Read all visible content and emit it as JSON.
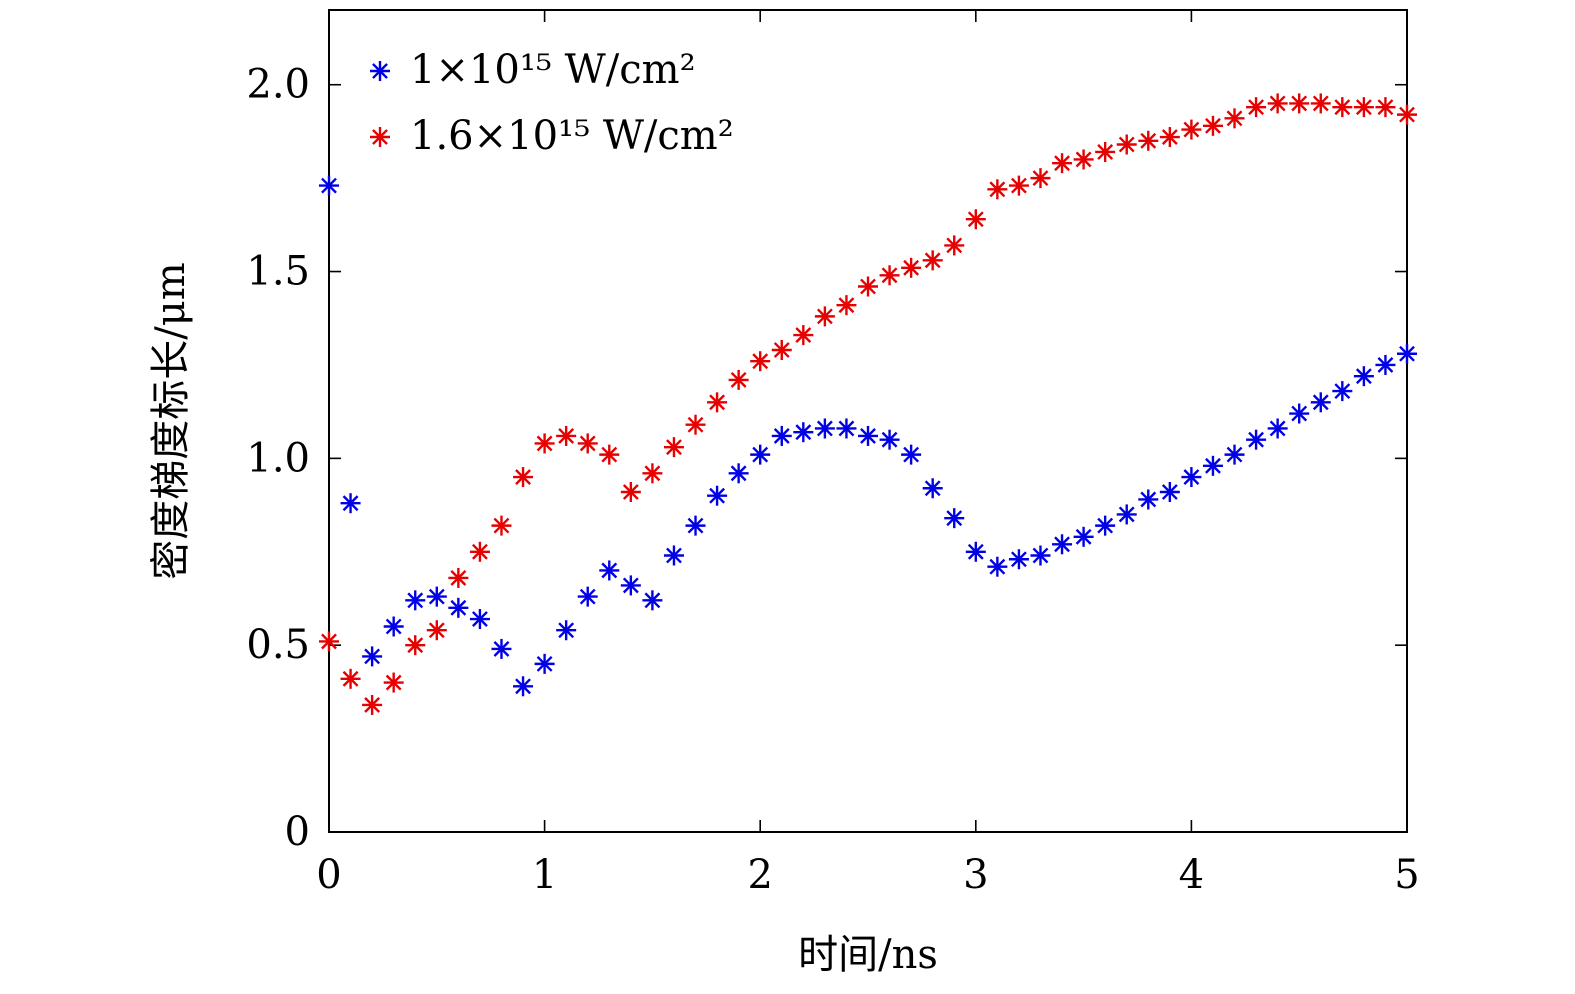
{
  "chart_data": {
    "type": "scatter",
    "title": "",
    "xlabel": "时间/ns",
    "ylabel": "密度梯度标长/μm",
    "xlim": [
      0,
      5
    ],
    "ylim": [
      0,
      2.2
    ],
    "xticks": [
      0,
      1,
      2,
      3,
      4,
      5
    ],
    "xtick_labels": [
      "0",
      "1",
      "2",
      "3",
      "4",
      "5"
    ],
    "yticks": [
      0,
      0.5,
      1.0,
      1.5,
      2.0
    ],
    "ytick_labels": [
      "0",
      "0.5",
      "1.0",
      "1.5",
      "2.0"
    ],
    "grid": false,
    "legend_position": "top-left",
    "marker": "asterisk",
    "series": [
      {
        "name": "1×10¹⁵ W/cm²",
        "color": "#0000e6",
        "points": [
          [
            0.0,
            1.73
          ],
          [
            0.1,
            0.88
          ],
          [
            0.2,
            0.47
          ],
          [
            0.3,
            0.55
          ],
          [
            0.4,
            0.62
          ],
          [
            0.5,
            0.63
          ],
          [
            0.6,
            0.6
          ],
          [
            0.7,
            0.57
          ],
          [
            0.8,
            0.49
          ],
          [
            0.9,
            0.39
          ],
          [
            1.0,
            0.45
          ],
          [
            1.1,
            0.54
          ],
          [
            1.2,
            0.63
          ],
          [
            1.3,
            0.7
          ],
          [
            1.4,
            0.66
          ],
          [
            1.5,
            0.62
          ],
          [
            1.6,
            0.74
          ],
          [
            1.7,
            0.82
          ],
          [
            1.8,
            0.9
          ],
          [
            1.9,
            0.96
          ],
          [
            2.0,
            1.01
          ],
          [
            2.1,
            1.06
          ],
          [
            2.2,
            1.07
          ],
          [
            2.3,
            1.08
          ],
          [
            2.4,
            1.08
          ],
          [
            2.5,
            1.06
          ],
          [
            2.6,
            1.05
          ],
          [
            2.7,
            1.01
          ],
          [
            2.8,
            0.92
          ],
          [
            2.9,
            0.84
          ],
          [
            3.0,
            0.75
          ],
          [
            3.1,
            0.71
          ],
          [
            3.2,
            0.73
          ],
          [
            3.3,
            0.74
          ],
          [
            3.4,
            0.77
          ],
          [
            3.5,
            0.79
          ],
          [
            3.6,
            0.82
          ],
          [
            3.7,
            0.85
          ],
          [
            3.8,
            0.89
          ],
          [
            3.9,
            0.91
          ],
          [
            4.0,
            0.95
          ],
          [
            4.1,
            0.98
          ],
          [
            4.2,
            1.01
          ],
          [
            4.3,
            1.05
          ],
          [
            4.4,
            1.08
          ],
          [
            4.5,
            1.12
          ],
          [
            4.6,
            1.15
          ],
          [
            4.7,
            1.18
          ],
          [
            4.8,
            1.22
          ],
          [
            4.9,
            1.25
          ],
          [
            5.0,
            1.28
          ]
        ]
      },
      {
        "name": "1.6×10¹⁵ W/cm²",
        "color": "#e60000",
        "points": [
          [
            0.0,
            0.51
          ],
          [
            0.1,
            0.41
          ],
          [
            0.2,
            0.34
          ],
          [
            0.3,
            0.4
          ],
          [
            0.4,
            0.5
          ],
          [
            0.5,
            0.54
          ],
          [
            0.6,
            0.68
          ],
          [
            0.7,
            0.75
          ],
          [
            0.8,
            0.82
          ],
          [
            0.9,
            0.95
          ],
          [
            1.0,
            1.04
          ],
          [
            1.1,
            1.06
          ],
          [
            1.2,
            1.04
          ],
          [
            1.3,
            1.01
          ],
          [
            1.4,
            0.91
          ],
          [
            1.5,
            0.96
          ],
          [
            1.6,
            1.03
          ],
          [
            1.7,
            1.09
          ],
          [
            1.8,
            1.15
          ],
          [
            1.9,
            1.21
          ],
          [
            2.0,
            1.26
          ],
          [
            2.1,
            1.29
          ],
          [
            2.2,
            1.33
          ],
          [
            2.3,
            1.38
          ],
          [
            2.4,
            1.41
          ],
          [
            2.5,
            1.46
          ],
          [
            2.6,
            1.49
          ],
          [
            2.7,
            1.51
          ],
          [
            2.8,
            1.53
          ],
          [
            2.9,
            1.57
          ],
          [
            3.0,
            1.64
          ],
          [
            3.1,
            1.72
          ],
          [
            3.2,
            1.73
          ],
          [
            3.3,
            1.75
          ],
          [
            3.4,
            1.79
          ],
          [
            3.5,
            1.8
          ],
          [
            3.6,
            1.82
          ],
          [
            3.7,
            1.84
          ],
          [
            3.8,
            1.85
          ],
          [
            3.9,
            1.86
          ],
          [
            4.0,
            1.88
          ],
          [
            4.1,
            1.89
          ],
          [
            4.2,
            1.91
          ],
          [
            4.3,
            1.94
          ],
          [
            4.4,
            1.95
          ],
          [
            4.5,
            1.95
          ],
          [
            4.6,
            1.95
          ],
          [
            4.7,
            1.94
          ],
          [
            4.8,
            1.94
          ],
          [
            4.9,
            1.94
          ],
          [
            5.0,
            1.92
          ]
        ]
      }
    ]
  }
}
